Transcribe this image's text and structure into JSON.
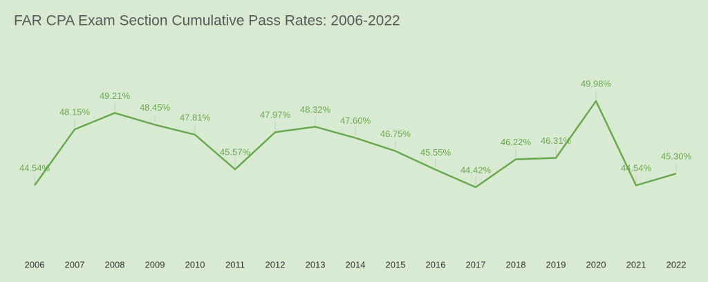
{
  "chart_data": {
    "type": "line",
    "title": "FAR CPA Exam Section Cumulative Pass Rates: 2006-2022",
    "categories": [
      "2006",
      "2007",
      "2008",
      "2009",
      "2010",
      "2011",
      "2012",
      "2013",
      "2014",
      "2015",
      "2016",
      "2017",
      "2018",
      "2019",
      "2020",
      "2021",
      "2022"
    ],
    "series": [
      {
        "name": "FAR",
        "color": "#6aa84f",
        "values": [
          44.54,
          48.15,
          49.21,
          48.45,
          47.81,
          45.57,
          47.97,
          48.32,
          47.6,
          46.75,
          45.55,
          44.42,
          46.22,
          46.31,
          49.98,
          44.54,
          45.3
        ],
        "value_labels": [
          "44.54%",
          "48.15%",
          "49.21%",
          "48.45%",
          "47.81%",
          "45.57%",
          "47.97%",
          "48.32%",
          "47.60%",
          "46.75%",
          "45.55%",
          "44.42%",
          "46.22%",
          "46.31%",
          "49.98%",
          "44.54%",
          "45.30%"
        ]
      }
    ],
    "ylim": [
      40,
      54
    ],
    "grid": false
  }
}
